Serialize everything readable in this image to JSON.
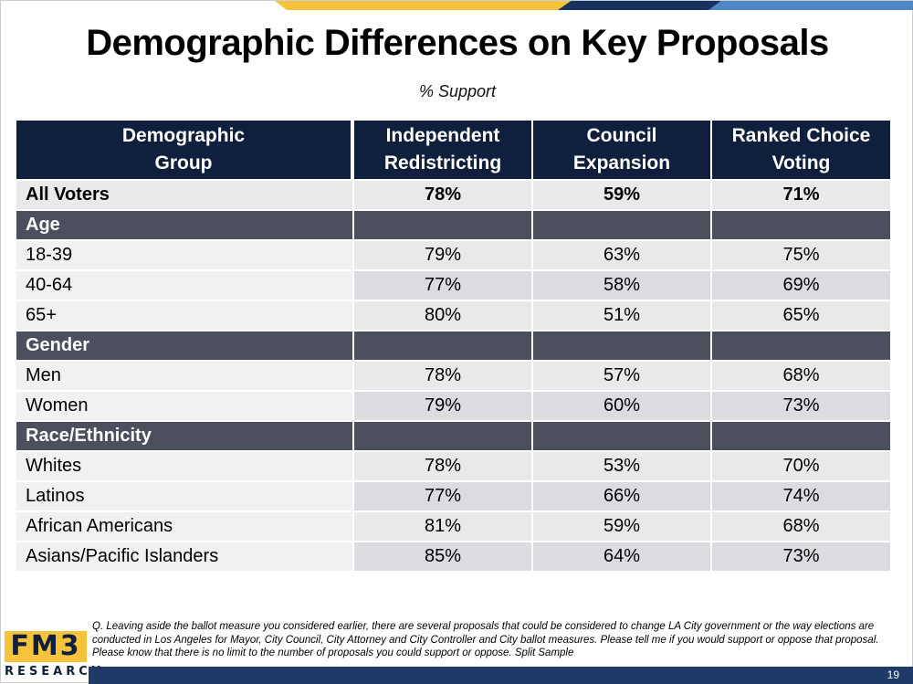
{
  "title": "Demographic Differences on Key Proposals",
  "subtitle": "% Support",
  "table": {
    "headers": [
      [
        "Demographic",
        "Group"
      ],
      [
        "Independent",
        "Redistricting"
      ],
      [
        "Council",
        "Expansion"
      ],
      [
        "Ranked Choice",
        "Voting"
      ]
    ],
    "all_voters": {
      "label": "All Voters",
      "values": [
        "78%",
        "59%",
        "71%"
      ]
    },
    "sections": [
      {
        "name": "Age",
        "rows": [
          {
            "label": "18-39",
            "values": [
              "79%",
              "63%",
              "75%"
            ]
          },
          {
            "label": "40-64",
            "values": [
              "77%",
              "58%",
              "69%"
            ]
          },
          {
            "label": "65+",
            "values": [
              "80%",
              "51%",
              "65%"
            ]
          }
        ]
      },
      {
        "name": "Gender",
        "rows": [
          {
            "label": "Men",
            "values": [
              "78%",
              "57%",
              "68%"
            ]
          },
          {
            "label": "Women",
            "values": [
              "79%",
              "60%",
              "73%"
            ]
          }
        ]
      },
      {
        "name": "Race/Ethnicity",
        "rows": [
          {
            "label": "Whites",
            "values": [
              "78%",
              "53%",
              "70%"
            ]
          },
          {
            "label": "Latinos",
            "values": [
              "77%",
              "66%",
              "74%"
            ]
          },
          {
            "label": "African Americans",
            "values": [
              "81%",
              "59%",
              "68%"
            ]
          },
          {
            "label": "Asians/Pacific Islanders",
            "values": [
              "85%",
              "64%",
              "73%"
            ]
          }
        ]
      }
    ]
  },
  "footnote": "Q. Leaving aside the ballot measure you considered earlier, there are several proposals that could be considered to change LA City government or the way elections are conducted in Los Angeles for Mayor, City Council, City Attorney and City Controller and City ballot measures. Please tell me if you would support or oppose that proposal. Please know that there is no limit to the number of proposals you could support or oppose. Split Sample",
  "logo": {
    "top": "FM3",
    "bottom": "RESEARCH"
  },
  "page_number": "19",
  "colors": {
    "header_bg": "#0f1f3d",
    "section_bg": "#4b4f5e",
    "row_bg": "#e9e9ec",
    "brand_gold": "#f6c33a",
    "brand_navy": "#1f3a66"
  }
}
